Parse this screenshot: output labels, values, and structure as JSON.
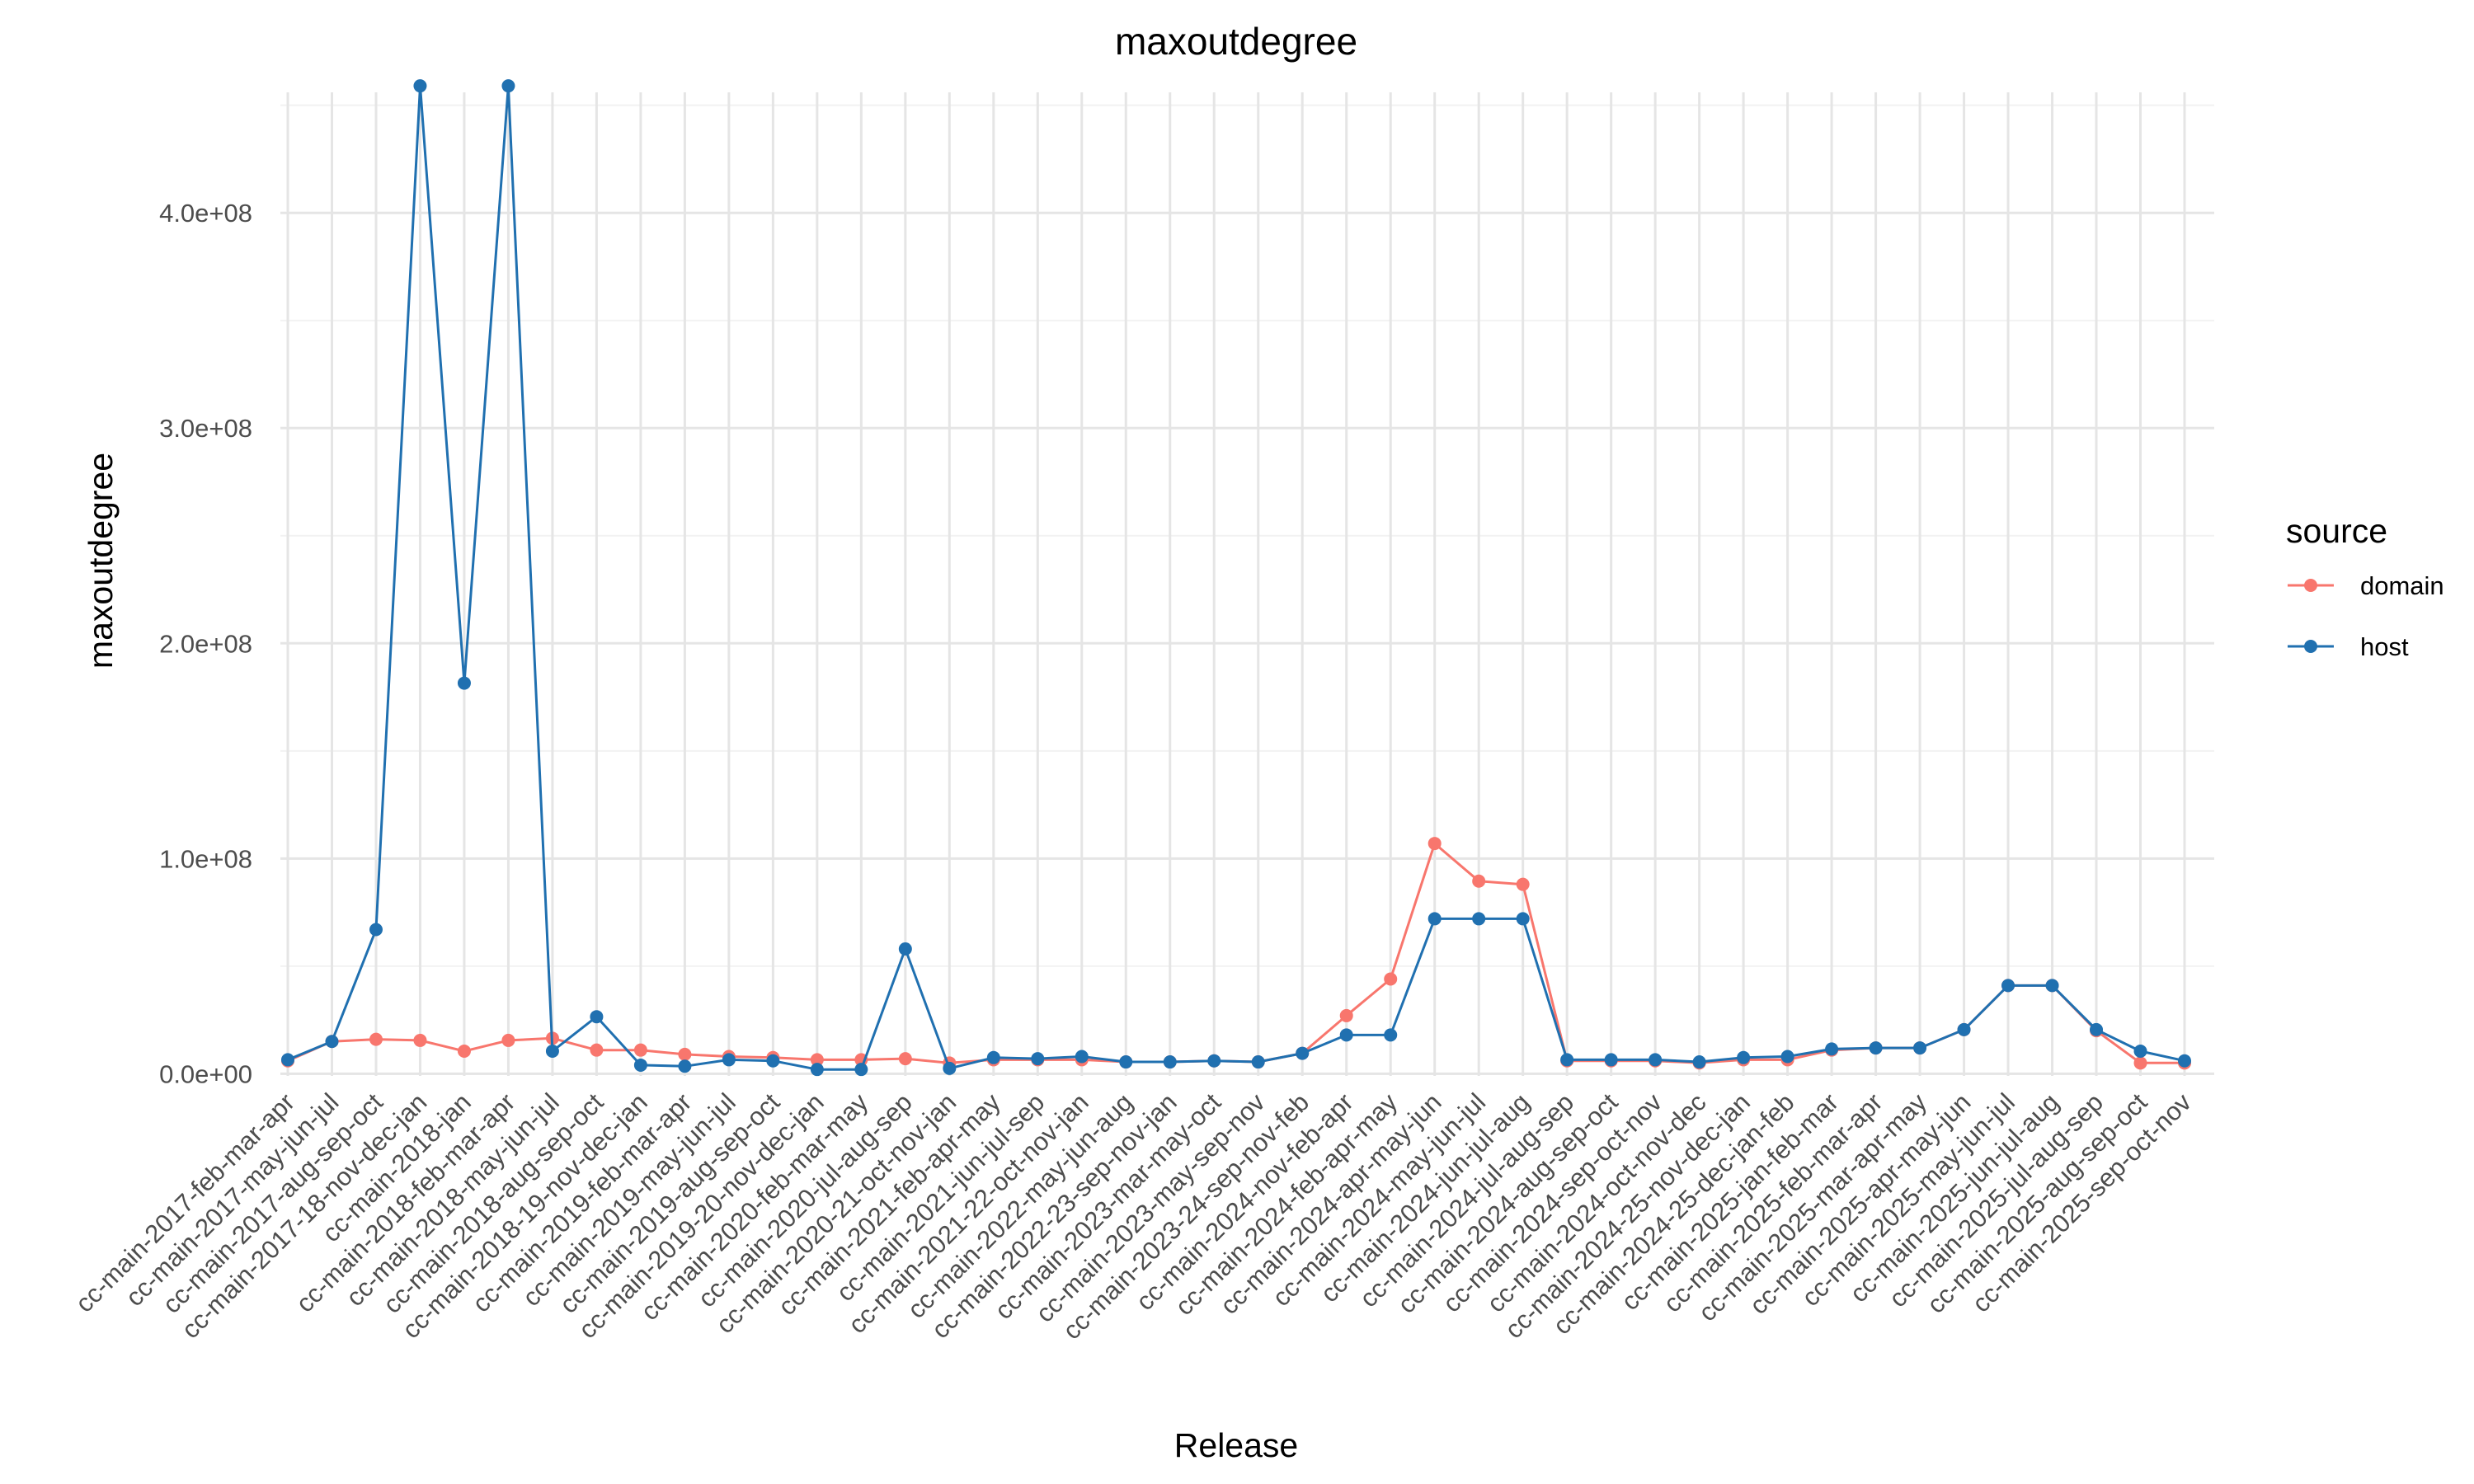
{
  "chart_data": {
    "type": "line",
    "title": "maxoutdegree",
    "xlabel": "Release",
    "ylabel": "maxoutdegree",
    "ylim": [
      -1,
      456
    ],
    "yticks": [
      0,
      100,
      200,
      300,
      400
    ],
    "ytick_labels": [
      "0.0e+00",
      "1.0e+08",
      "2.0e+08",
      "3.0e+08",
      "4.0e+08"
    ],
    "grid": true,
    "legend": {
      "title": "source",
      "position": "right"
    },
    "categories": [
      "cc-main-2017-feb-mar-apr",
      "cc-main-2017-may-jun-jul",
      "cc-main-2017-aug-sep-oct",
      "cc-main-2017-18-nov-dec-jan",
      "cc-main-2018-jan",
      "cc-main-2018-feb-mar-apr",
      "cc-main-2018-may-jun-jul",
      "cc-main-2018-aug-sep-oct",
      "cc-main-2018-19-nov-dec-jan",
      "cc-main-2019-feb-mar-apr",
      "cc-main-2019-may-jun-jul",
      "cc-main-2019-aug-sep-oct",
      "cc-main-2019-20-nov-dec-jan",
      "cc-main-2020-feb-mar-may",
      "cc-main-2020-jul-aug-sep",
      "cc-main-2020-21-oct-nov-jan",
      "cc-main-2021-feb-apr-may",
      "cc-main-2021-jun-jul-sep",
      "cc-main-2021-22-oct-nov-jan",
      "cc-main-2022-may-jun-aug",
      "cc-main-2022-23-sep-nov-jan",
      "cc-main-2023-mar-may-oct",
      "cc-main-2023-may-sep-nov",
      "cc-main-2023-24-sep-nov-feb",
      "cc-main-2024-nov-feb-apr",
      "cc-main-2024-feb-apr-may",
      "cc-main-2024-apr-may-jun",
      "cc-main-2024-may-jun-jul",
      "cc-main-2024-jun-jul-aug",
      "cc-main-2024-jul-aug-sep",
      "cc-main-2024-aug-sep-oct",
      "cc-main-2024-sep-oct-nov",
      "cc-main-2024-oct-nov-dec",
      "cc-main-2024-25-nov-dec-jan",
      "cc-main-2024-25-dec-jan-feb",
      "cc-main-2025-jan-feb-mar",
      "cc-main-2025-feb-mar-apr",
      "cc-main-2025-mar-apr-may",
      "cc-main-2025-apr-may-jun",
      "cc-main-2025-may-jun-jul",
      "cc-main-2025-jun-jul-aug",
      "cc-main-2025-jul-aug-sep",
      "cc-main-2025-aug-sep-oct",
      "cc-main-2025-sep-oct-nov"
    ],
    "value_scale": "values in units of 1e6 (y-axis tick 1.0e+08 = 100)",
    "series": [
      {
        "name": "domain",
        "color": "#F8766D",
        "values": [
          6,
          15,
          16,
          15.5,
          10.5,
          15.5,
          16.5,
          11,
          11,
          9,
          8,
          7.5,
          6.5,
          6.5,
          7,
          5,
          6.5,
          6.5,
          6.5,
          5.5,
          5.5,
          6,
          5.5,
          9.5,
          27,
          44,
          107,
          89.5,
          88,
          6,
          6,
          6,
          5,
          6.5,
          6.5,
          11,
          12,
          12,
          20.5,
          41,
          41,
          20,
          5,
          5
        ]
      },
      {
        "name": "host",
        "color": "#2070B0",
        "values": [
          6.5,
          15,
          67,
          459,
          181.5,
          459,
          10.5,
          26.5,
          4,
          3.5,
          6.5,
          6,
          2,
          2,
          58,
          2.5,
          7.5,
          7,
          8,
          5.5,
          5.5,
          6,
          5.5,
          9.5,
          18,
          18,
          72,
          72,
          72,
          6.5,
          6.5,
          6.5,
          5.5,
          7.5,
          8,
          11.5,
          12,
          12,
          20.5,
          41,
          41,
          20.5,
          10.5,
          6
        ]
      }
    ]
  }
}
